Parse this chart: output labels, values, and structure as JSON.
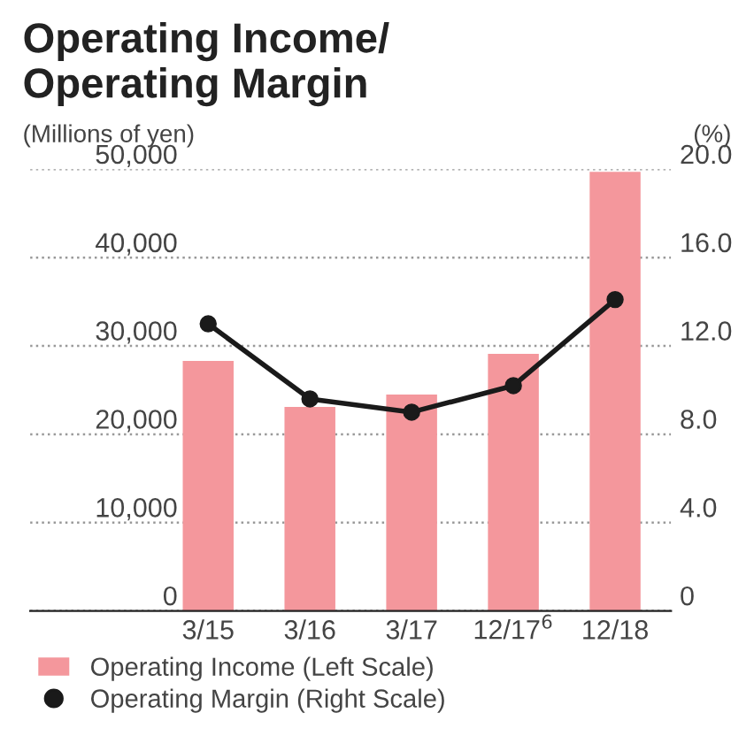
{
  "chart_data": {
    "type": "bar",
    "title": "Operating Income/\nOperating Margin",
    "ylabel": "(Millions of yen)",
    "y2label": "(%)",
    "categories": [
      "3/15",
      "3/16",
      "3/17",
      "12/17$^{6}$",
      "12/18"
    ],
    "series": [
      {
        "name": "Operating Income (Left Scale)",
        "color": "#f4979c",
        "values": [
          28300,
          23100,
          24500,
          29100,
          49700
        ]
      },
      {
        "name": "Operating Margin (Right Scale)",
        "type": "line",
        "axis": "y2",
        "color": "#1a1a1a",
        "marker": "circle",
        "values": [
          13.0,
          9.6,
          9.0,
          10.2,
          14.1
        ]
      }
    ],
    "ylim": [
      0,
      50000
    ],
    "yticks": [
      {
        "value": 0,
        "label": "0"
      },
      {
        "value": 10000,
        "label": "10,000"
      },
      {
        "value": 20000,
        "label": "20,000"
      },
      {
        "value": 30000,
        "label": "30,000"
      },
      {
        "value": 40000,
        "label": "40,000"
      },
      {
        "value": 50000,
        "label": "50,000"
      }
    ],
    "y2lim": [
      0,
      20
    ],
    "y2ticks": [
      {
        "value": 0,
        "label": "0"
      },
      {
        "value": 4,
        "label": "4.0"
      },
      {
        "value": 8,
        "label": "8.0"
      },
      {
        "value": 12,
        "label": "12.0"
      },
      {
        "value": 16,
        "label": "16.0"
      },
      {
        "value": 20,
        "label": "20.0"
      }
    ],
    "grid": "y",
    "legend": "bottom left"
  }
}
